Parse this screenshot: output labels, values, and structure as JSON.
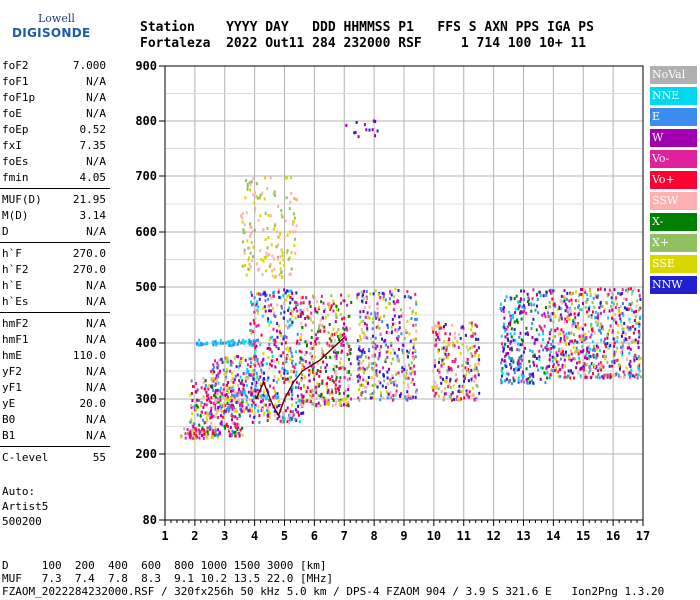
{
  "logo": {
    "line1": "Lowell",
    "line2": "DIGISONDE"
  },
  "header": {
    "line1": "Station    YYYY DAY   DDD HHMMSS P1   FFS S AXN PPS IGA PS",
    "line2": "Fortaleza  2022 Out11 284 232000 RSF     1 714 100 10+ 11"
  },
  "params": [
    {
      "name": "foF2",
      "value": "7.000"
    },
    {
      "name": "foF1",
      "value": "N/A"
    },
    {
      "name": "foF1p",
      "value": "N/A"
    },
    {
      "name": "foE",
      "value": "N/A"
    },
    {
      "name": "foEp",
      "value": "0.52"
    },
    {
      "name": "fxI",
      "value": "7.35"
    },
    {
      "name": "foEs",
      "value": "N/A"
    },
    {
      "name": "fmin",
      "value": "4.05"
    },
    {
      "name": "MUF(D)",
      "value": "21.95"
    },
    {
      "name": "M(D)",
      "value": "3.14"
    },
    {
      "name": "D",
      "value": "N/A"
    },
    {
      "name": "h`F",
      "value": "270.0"
    },
    {
      "name": "h`F2",
      "value": "270.0"
    },
    {
      "name": "h`E",
      "value": "N/A"
    },
    {
      "name": "h`Es",
      "value": "N/A"
    },
    {
      "name": "hmF2",
      "value": "N/A"
    },
    {
      "name": "hmF1",
      "value": "N/A"
    },
    {
      "name": "hmE",
      "value": "110.0"
    },
    {
      "name": "yF2",
      "value": "N/A"
    },
    {
      "name": "yF1",
      "value": "N/A"
    },
    {
      "name": "yE",
      "value": "20.0"
    },
    {
      "name": "B0",
      "value": "N/A"
    },
    {
      "name": "B1",
      "value": "N/A"
    },
    {
      "name": "C-level",
      "value": "55"
    }
  ],
  "auto": {
    "line1": "Auto:",
    "line2": "Artist5",
    "line3": "500200"
  },
  "legend": [
    {
      "label": "NoVal",
      "color": "#b0b0b0"
    },
    {
      "label": "NNE",
      "color": "#00d8f0"
    },
    {
      "label": "E",
      "color": "#3c8cf0"
    },
    {
      "label": "W",
      "color": "#a000b0"
    },
    {
      "label": "Vo-",
      "color": "#e0209c"
    },
    {
      "label": "Vo+",
      "color": "#ff0032"
    },
    {
      "label": "SSW",
      "color": "#ffb0b0"
    },
    {
      "label": "X-",
      "color": "#008000"
    },
    {
      "label": "X+",
      "color": "#90c060"
    },
    {
      "label": "SSE",
      "color": "#d8d800"
    },
    {
      "label": "NNW",
      "color": "#2020d0"
    }
  ],
  "footer": {
    "line1": "D     100  200  400  600  800 1000 1500 3000 [km]",
    "line2": "MUF   7.3  7.4  7.8  8.3  9.1 10.2 13.5 22.0 [MHz]",
    "line3": "FZAOM_2022284232000.RSF / 320fx256h 50 kHz 5.0 km / DPS-4 FZAOM 904 / 3.9 S 321.6 E   Ion2Png 1.3.20"
  },
  "chart_data": {
    "type": "scatter",
    "xlim": [
      1,
      17
    ],
    "ylim": [
      80,
      900
    ],
    "x_ticks": [
      1,
      2,
      3,
      4,
      5,
      6,
      7,
      8,
      9,
      10,
      11,
      12,
      13,
      14,
      15,
      16,
      17
    ],
    "y_ticks": [
      80,
      200,
      300,
      400,
      500,
      600,
      700,
      800,
      900
    ],
    "grid": true,
    "legend_position": "right",
    "clusters": [
      {
        "f": [
          1.5,
          2.8
        ],
        "h": [
          230,
          250
        ],
        "n": 60,
        "c": [
          "#b0b0b0",
          "#d8d800",
          "#e0209c"
        ]
      },
      {
        "f": [
          1.8,
          3.6
        ],
        "h": [
          235,
          340
        ],
        "n": 260,
        "c": [
          "#ff0032",
          "#e0209c",
          "#d8d800",
          "#3c8cf0",
          "#008000",
          "#ffb0b0",
          "#a000b0"
        ]
      },
      {
        "f": [
          2.5,
          4.3
        ],
        "h": [
          280,
          380
        ],
        "n": 260,
        "c": [
          "#3c8cf0",
          "#a000b0",
          "#e0209c",
          "#00d8f0",
          "#d8d800",
          "#ffb0b0"
        ]
      },
      {
        "f": [
          2.0,
          4.2
        ],
        "h": [
          398,
          408
        ],
        "n": 60,
        "c": [
          "#3c8cf0",
          "#00d8f0"
        ]
      },
      {
        "f": [
          3.8,
          5.6
        ],
        "h": [
          260,
          500
        ],
        "n": 400,
        "c": [
          "#3c8cf0",
          "#a000b0",
          "#e0209c",
          "#ff0032",
          "#2020d0",
          "#ffb0b0",
          "#00d8f0",
          "#d8d800"
        ]
      },
      {
        "f": [
          3.5,
          5.4
        ],
        "h": [
          520,
          700
        ],
        "n": 160,
        "c": [
          "#d8d800",
          "#90c060",
          "#ffb0b0"
        ]
      },
      {
        "f": [
          5.5,
          7.2
        ],
        "h": [
          290,
          490
        ],
        "n": 350,
        "c": [
          "#e0209c",
          "#ff0032",
          "#d8d800",
          "#ffb0b0",
          "#a000b0",
          "#008000",
          "#90c060"
        ]
      },
      {
        "f": [
          7.4,
          9.4
        ],
        "h": [
          300,
          500
        ],
        "n": 380,
        "c": [
          "#d8d800",
          "#ffb0b0",
          "#2020d0",
          "#a000b0",
          "#90c060",
          "#e0209c",
          "#3c8cf0"
        ]
      },
      {
        "f": [
          7.0,
          8.5
        ],
        "h": [
          770,
          805
        ],
        "n": 14,
        "c": [
          "#2020d0",
          "#a000b0"
        ]
      },
      {
        "f": [
          9.9,
          11.5
        ],
        "h": [
          300,
          440
        ],
        "n": 230,
        "c": [
          "#d8d800",
          "#ffb0b0",
          "#90c060",
          "#ff0032",
          "#e0209c",
          "#2020d0"
        ]
      },
      {
        "f": [
          12.2,
          13.8
        ],
        "h": [
          330,
          500
        ],
        "n": 260,
        "c": [
          "#2020d0",
          "#a000b0",
          "#3c8cf0",
          "#00d8f0",
          "#e0209c",
          "#008000"
        ]
      },
      {
        "f": [
          13.8,
          16.9
        ],
        "h": [
          340,
          500
        ],
        "n": 650,
        "c": [
          "#2020d0",
          "#a000b0",
          "#3c8cf0",
          "#00d8f0",
          "#e0209c",
          "#ff0032",
          "#ffb0b0",
          "#d8d800",
          "#90c060"
        ]
      }
    ],
    "trace": [
      [
        4.05,
        300
      ],
      [
        4.3,
        330
      ],
      [
        4.6,
        290
      ],
      [
        4.8,
        270
      ],
      [
        5.0,
        300
      ],
      [
        5.3,
        330
      ],
      [
        5.6,
        350
      ],
      [
        5.9,
        360
      ],
      [
        6.2,
        370
      ],
      [
        6.5,
        385
      ],
      [
        6.8,
        400
      ],
      [
        7.0,
        410
      ]
    ]
  }
}
